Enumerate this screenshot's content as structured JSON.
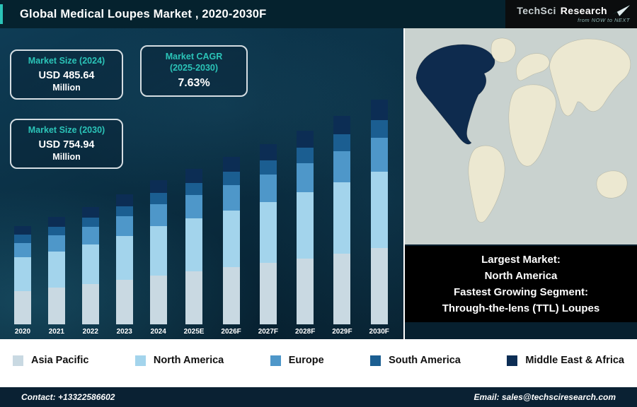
{
  "header": {
    "title": "Global Medical Loupes Market , 2020-2030F",
    "logo": {
      "brand_primary": "TechSci",
      "brand_secondary": "Research",
      "tagline": "from NOW to NEXT"
    }
  },
  "callouts": [
    {
      "title": "Market Size (2024)",
      "value": "USD 485.64",
      "unit": "Million"
    },
    {
      "title": "Market CAGR",
      "subtitle": "(2025-2030)",
      "value": "7.63%"
    },
    {
      "title": "Market Size (2030)",
      "value": "USD 754.94",
      "unit": "Million"
    }
  ],
  "chart_data": {
    "type": "bar",
    "stacked": true,
    "title": "Global Medical Loupes Market , 2020-2030F",
    "unit": "USD Million",
    "categories": [
      "2020",
      "2021",
      "2022",
      "2023",
      "2024",
      "2025E",
      "2026F",
      "2027F",
      "2028F",
      "2029F",
      "2030F"
    ],
    "series": [
      {
        "name": "Asia Pacific",
        "color": "#c9d9e2",
        "values": [
          112.2,
          122.4,
          134.3,
          148.6,
          165.1,
          177.7,
          191.3,
          205.9,
          221.6,
          238.5,
          256.7
        ]
      },
      {
        "name": "North America",
        "color": "#a3d4ec",
        "values": [
          112.2,
          122.4,
          134.3,
          148.6,
          165.1,
          177.7,
          191.3,
          205.9,
          221.6,
          238.5,
          256.7
        ]
      },
      {
        "name": "Europe",
        "color": "#4e97c9",
        "values": [
          49.5,
          54.0,
          59.3,
          65.6,
          72.8,
          78.4,
          84.4,
          90.8,
          97.8,
          105.2,
          113.2
        ]
      },
      {
        "name": "South America",
        "color": "#1b5e91",
        "values": [
          26.4,
          28.8,
          31.6,
          35.0,
          38.9,
          41.8,
          45.0,
          48.4,
          52.1,
          56.1,
          60.4
        ]
      },
      {
        "name": "Middle East & Africa",
        "color": "#0c2d54",
        "values": [
          29.7,
          32.4,
          35.5,
          39.3,
          43.7,
          47.0,
          50.6,
          54.5,
          58.7,
          63.1,
          67.9
        ]
      }
    ],
    "ylim": [
      0,
      800
    ],
    "grid": false,
    "legend_position": "bottom"
  },
  "map": {
    "highlighted_region": "North America"
  },
  "note_box": {
    "lines": [
      "Largest Market:",
      "North America",
      "Fastest Growing Segment:",
      "Through-the-lens (TTL) Loupes"
    ]
  },
  "footer": {
    "contact": "Contact: +13322586602",
    "email": "Email: sales@techsciresearch.com"
  },
  "colors": {
    "accent_teal": "#2bc4b8",
    "header_bg": "#05222e",
    "chart_bg_start": "#0e3c55",
    "chart_bg_end": "#061d2b",
    "map_ocean": "#c9d2cf",
    "map_land": "#ece8d1",
    "map_highlight": "#0e2b4e",
    "note_bg": "#000000",
    "footer_bg": "#0a2133",
    "right_filler": "#07202f"
  }
}
